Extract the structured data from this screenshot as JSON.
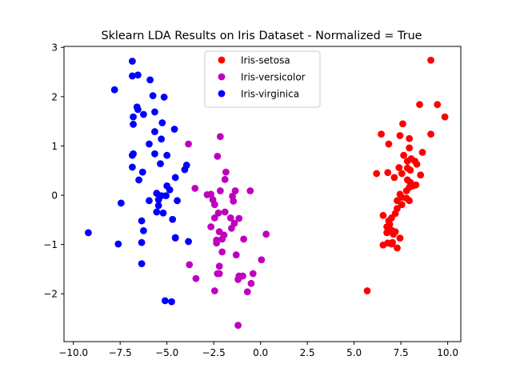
{
  "chart_data": {
    "type": "scatter",
    "title": "Sklearn LDA Results on Iris Dataset - Normalized = True",
    "xlabel": "",
    "ylabel": "",
    "xlim": [
      -10.5,
      10.7
    ],
    "ylim": [
      -2.97,
      3.02
    ],
    "xticks": [
      -10.0,
      -7.5,
      -5.0,
      -2.5,
      0.0,
      2.5,
      5.0,
      7.5,
      10.0
    ],
    "xtick_labels": [
      "−10.0",
      "−7.5",
      "−5.0",
      "−2.5",
      "0.0",
      "2.5",
      "5.0",
      "7.5",
      "10.0"
    ],
    "yticks": [
      -2,
      -1,
      0,
      1,
      2,
      3
    ],
    "ytick_labels": [
      "−2",
      "−1",
      "0",
      "1",
      "2",
      "3"
    ],
    "grid": false,
    "legend_position": "upper center",
    "series": [
      {
        "name": "Iris-setosa",
        "color": "#ff0000",
        "points": [
          [
            9.1,
            2.74
          ],
          [
            9.45,
            1.84
          ],
          [
            8.5,
            1.84
          ],
          [
            9.85,
            1.59
          ],
          [
            7.6,
            1.45
          ],
          [
            6.45,
            1.24
          ],
          [
            7.45,
            1.21
          ],
          [
            9.1,
            1.24
          ],
          [
            6.85,
            1.04
          ],
          [
            7.95,
            1.15
          ],
          [
            7.95,
            0.96
          ],
          [
            8.65,
            0.87
          ],
          [
            7.65,
            0.81
          ],
          [
            8.05,
            0.74
          ],
          [
            7.85,
            0.69
          ],
          [
            8.25,
            0.69
          ],
          [
            7.4,
            0.56
          ],
          [
            7.85,
            0.55
          ],
          [
            8.0,
            0.51
          ],
          [
            8.35,
            0.63
          ],
          [
            8.55,
            0.41
          ],
          [
            6.2,
            0.44
          ],
          [
            6.8,
            0.46
          ],
          [
            7.15,
            0.36
          ],
          [
            7.55,
            0.44
          ],
          [
            7.85,
            0.31
          ],
          [
            8.0,
            0.26
          ],
          [
            8.15,
            0.19
          ],
          [
            8.3,
            0.21
          ],
          [
            7.95,
            0.16
          ],
          [
            7.8,
            0.09
          ],
          [
            7.45,
            0.02
          ],
          [
            7.55,
            -0.04
          ],
          [
            7.3,
            -0.11
          ],
          [
            7.8,
            -0.06
          ],
          [
            7.95,
            -0.11
          ],
          [
            7.55,
            -0.19
          ],
          [
            7.3,
            -0.27
          ],
          [
            7.2,
            -0.37
          ],
          [
            6.55,
            -0.41
          ],
          [
            7.0,
            -0.46
          ],
          [
            6.85,
            -0.52
          ],
          [
            6.9,
            -0.59
          ],
          [
            6.75,
            -0.64
          ],
          [
            7.0,
            -0.71
          ],
          [
            7.2,
            -0.74
          ],
          [
            6.75,
            -0.76
          ],
          [
            7.1,
            -0.79
          ],
          [
            7.45,
            -0.87
          ],
          [
            7.05,
            -0.96
          ],
          [
            6.8,
            -0.97
          ],
          [
            6.55,
            -1.01
          ],
          [
            7.0,
            -0.99
          ],
          [
            7.3,
            -1.07
          ],
          [
            5.7,
            -1.94
          ]
        ]
      },
      {
        "name": "Iris-versicolor",
        "color": "#bf00bf",
        "points": [
          [
            -3.85,
            1.04
          ],
          [
            -2.3,
            0.79
          ],
          [
            -2.15,
            1.19
          ],
          [
            -1.85,
            0.47
          ],
          [
            -1.9,
            0.32
          ],
          [
            -1.35,
            0.09
          ],
          [
            -0.55,
            0.09
          ],
          [
            -2.15,
            0.09
          ],
          [
            -1.5,
            -0.02
          ],
          [
            -2.85,
            0.01
          ],
          [
            -2.65,
            0.02
          ],
          [
            -3.5,
            0.14
          ],
          [
            -2.55,
            -0.09
          ],
          [
            -2.45,
            -0.19
          ],
          [
            -1.45,
            -0.12
          ],
          [
            -2.25,
            -0.36
          ],
          [
            -1.9,
            -0.34
          ],
          [
            -1.6,
            -0.46
          ],
          [
            -1.15,
            -0.47
          ],
          [
            -2.45,
            -0.46
          ],
          [
            -1.4,
            -0.57
          ],
          [
            -2.65,
            -0.64
          ],
          [
            -2.2,
            -0.74
          ],
          [
            -1.55,
            -0.67
          ],
          [
            -1.95,
            -0.81
          ],
          [
            -2.05,
            -0.89
          ],
          [
            -0.9,
            -0.89
          ],
          [
            -2.35,
            -0.97
          ],
          [
            -2.35,
            -0.91
          ],
          [
            -2.05,
            -1.15
          ],
          [
            -1.3,
            -1.21
          ],
          [
            0.3,
            -0.79
          ],
          [
            0.05,
            -1.31
          ],
          [
            -3.8,
            -1.41
          ],
          [
            -2.2,
            -1.44
          ],
          [
            -3.45,
            -1.69
          ],
          [
            -2.2,
            -1.59
          ],
          [
            -2.3,
            -1.59
          ],
          [
            -1.15,
            -1.64
          ],
          [
            -0.4,
            -1.59
          ],
          [
            -0.95,
            -1.64
          ],
          [
            -1.2,
            -1.71
          ],
          [
            -0.5,
            -1.79
          ],
          [
            -2.45,
            -1.94
          ],
          [
            -0.7,
            -1.96
          ],
          [
            -1.2,
            -2.64
          ],
          [
            -4.55,
            -0.87
          ]
        ]
      },
      {
        "name": "Iris-virginica",
        "color": "#0000ff",
        "points": [
          [
            -6.85,
            2.72
          ],
          [
            -6.85,
            2.42
          ],
          [
            -6.55,
            2.44
          ],
          [
            -5.9,
            2.34
          ],
          [
            -7.8,
            2.14
          ],
          [
            -5.75,
            2.02
          ],
          [
            -5.15,
            1.99
          ],
          [
            -6.6,
            1.79
          ],
          [
            -6.55,
            1.74
          ],
          [
            -6.25,
            1.64
          ],
          [
            -5.65,
            1.69
          ],
          [
            -6.8,
            1.59
          ],
          [
            -6.8,
            1.44
          ],
          [
            -5.25,
            1.47
          ],
          [
            -4.6,
            1.34
          ],
          [
            -5.65,
            1.29
          ],
          [
            -5.3,
            1.14
          ],
          [
            -5.95,
            1.04
          ],
          [
            -6.8,
            0.84
          ],
          [
            -6.85,
            0.81
          ],
          [
            -5.65,
            0.84
          ],
          [
            -5.0,
            0.81
          ],
          [
            -6.85,
            0.57
          ],
          [
            -5.35,
            0.64
          ],
          [
            -3.95,
            0.61
          ],
          [
            -4.05,
            0.52
          ],
          [
            -6.3,
            0.47
          ],
          [
            -4.55,
            0.36
          ],
          [
            -6.5,
            0.31
          ],
          [
            -5.0,
            0.19
          ],
          [
            -4.85,
            0.11
          ],
          [
            -5.55,
            0.04
          ],
          [
            -5.3,
            -0.01
          ],
          [
            -5.05,
            -0.01
          ],
          [
            -5.95,
            -0.11
          ],
          [
            -5.45,
            -0.09
          ],
          [
            -4.45,
            -0.11
          ],
          [
            -5.45,
            -0.21
          ],
          [
            -7.45,
            -0.16
          ],
          [
            -5.55,
            -0.34
          ],
          [
            -5.2,
            -0.36
          ],
          [
            -4.7,
            -0.49
          ],
          [
            -6.35,
            -0.52
          ],
          [
            -6.25,
            -0.72
          ],
          [
            -9.2,
            -0.76
          ],
          [
            -4.55,
            -0.86
          ],
          [
            -3.85,
            -0.94
          ],
          [
            -7.6,
            -0.99
          ],
          [
            -6.35,
            -0.96
          ],
          [
            -6.35,
            -1.39
          ],
          [
            -5.1,
            -2.14
          ],
          [
            -4.75,
            -2.16
          ]
        ]
      }
    ]
  }
}
